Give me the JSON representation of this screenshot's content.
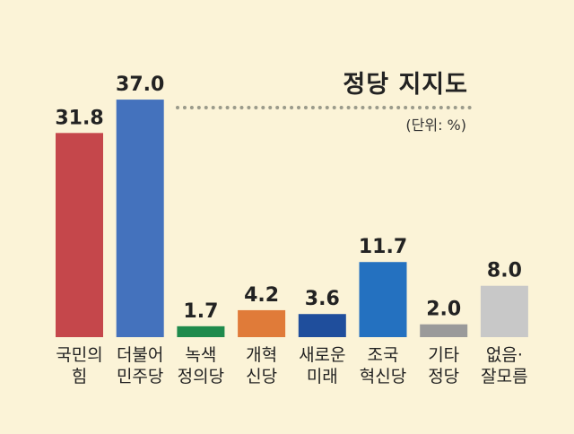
{
  "chart_data": {
    "type": "bar",
    "title": "정당 지지도",
    "unit": "(단위: %)",
    "ylim": [
      0,
      40
    ],
    "categories": [
      "국민의\n힘",
      "더불어\n민주당",
      "녹색\n정의당",
      "개혁\n신당",
      "새로운\n미래",
      "조국\n혁신당",
      "기타\n정당",
      "없음·\n잘모름"
    ],
    "values": [
      31.8,
      37.0,
      1.7,
      4.2,
      3.6,
      11.7,
      2.0,
      8.0
    ],
    "value_labels": [
      "31.8",
      "37.0",
      "1.7",
      "4.2",
      "3.6",
      "11.7",
      "2.0",
      "8.0"
    ],
    "colors": [
      "#c5474b",
      "#4472bd",
      "#1f8b4c",
      "#e07b39",
      "#1f4e9c",
      "#2471c0",
      "#9a9a9a",
      "#c8c8c8"
    ]
  }
}
